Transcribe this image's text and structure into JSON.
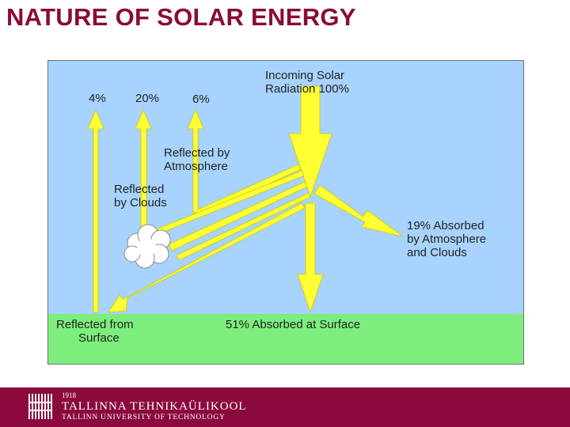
{
  "slide": {
    "title": "NATURE OF SOLAR ENERGY"
  },
  "diagram": {
    "colors": {
      "sky": "#a8d3ff",
      "ground": "#7dee7d",
      "arrow": "#ffff33",
      "cloud": "#ffffff"
    },
    "labels": {
      "incoming_line1": "Incoming Solar",
      "incoming_line2": "Radiation 100%",
      "pct_surface": "4%",
      "pct_clouds": "20%",
      "pct_atmosphere": "6%",
      "reflected_atmosphere_line1": "Reflected by",
      "reflected_atmosphere_line2": "Atmosphere",
      "reflected_clouds_line1": "Reflected",
      "reflected_clouds_line2": "by Clouds",
      "absorbed_atmo_line1": "19% Absorbed",
      "absorbed_atmo_line2": "by Atmosphere",
      "absorbed_atmo_line3": "and Clouds",
      "reflected_surface_line1": "Reflected from",
      "reflected_surface_line2": "Surface",
      "absorbed_surface": "51% Absorbed at Surface"
    }
  },
  "footer": {
    "year": "1918",
    "name_estonian": "TALLINNA TEHNIKAÜLIKOOL",
    "name_english": "TALLINN UNIVERSITY OF TECHNOLOGY"
  }
}
